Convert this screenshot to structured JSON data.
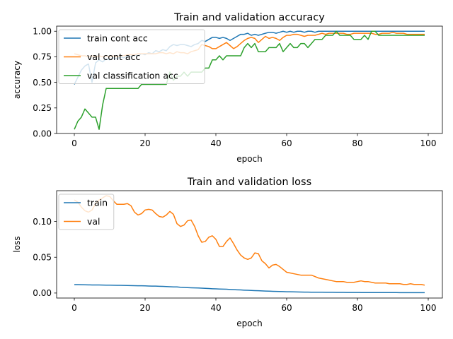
{
  "chart_data": [
    {
      "type": "line",
      "title": "Train and validation accuracy",
      "xlabel": "epoch",
      "ylabel": "accuracy",
      "xlim": [
        -5,
        104
      ],
      "ylim": [
        0.0,
        1.05
      ],
      "xticks": [
        0,
        20,
        40,
        60,
        80,
        100
      ],
      "yticks": [
        0.0,
        0.25,
        0.5,
        0.75,
        1.0
      ],
      "ytick_labels": [
        "0.00",
        "0.25",
        "0.50",
        "0.75",
        "1.00"
      ],
      "legend_position": "upper-left",
      "grid": false,
      "series": [
        {
          "name": "train cont acc",
          "color": "#1f77b4",
          "values": [
            0.48,
            0.55,
            0.62,
            0.66,
            0.68,
            0.5,
            0.69,
            0.72,
            0.7,
            0.73,
            0.72,
            0.74,
            0.73,
            0.75,
            0.74,
            0.76,
            0.75,
            0.77,
            0.76,
            0.78,
            0.77,
            0.79,
            0.78,
            0.81,
            0.8,
            0.82,
            0.81,
            0.85,
            0.87,
            0.86,
            0.87,
            0.87,
            0.86,
            0.85,
            0.87,
            0.88,
            0.91,
            0.9,
            0.92,
            0.94,
            0.94,
            0.93,
            0.94,
            0.93,
            0.91,
            0.93,
            0.95,
            0.97,
            0.97,
            0.98,
            0.96,
            0.97,
            0.96,
            0.97,
            0.98,
            0.99,
            0.99,
            0.98,
            0.99,
            1.0,
            0.99,
            1.0,
            0.99,
            1.0,
            1.0,
            0.99,
            1.0,
            1.0,
            0.99,
            1.0,
            1.0,
            1.0,
            1.0,
            1.0,
            1.0,
            1.0,
            1.0,
            1.0,
            1.0,
            1.0,
            1.0,
            1.0,
            1.0,
            1.0,
            1.0,
            1.0,
            1.0,
            1.0,
            1.0,
            1.0,
            1.0,
            1.0,
            1.0,
            1.0,
            1.0,
            1.0,
            1.0,
            1.0,
            1.0,
            1.0
          ]
        },
        {
          "name": "val cont acc",
          "color": "#ff7f0e",
          "values": [
            0.78,
            0.77,
            0.76,
            0.76,
            0.75,
            0.76,
            0.75,
            0.76,
            0.75,
            0.76,
            0.75,
            0.76,
            0.75,
            0.76,
            0.76,
            0.77,
            0.77,
            0.77,
            0.78,
            0.78,
            0.78,
            0.78,
            0.78,
            0.78,
            0.79,
            0.79,
            0.78,
            0.79,
            0.78,
            0.8,
            0.79,
            0.79,
            0.78,
            0.8,
            0.81,
            0.82,
            0.87,
            0.86,
            0.85,
            0.83,
            0.83,
            0.85,
            0.87,
            0.89,
            0.86,
            0.83,
            0.85,
            0.88,
            0.91,
            0.93,
            0.94,
            0.93,
            0.89,
            0.92,
            0.95,
            0.93,
            0.94,
            0.93,
            0.91,
            0.94,
            0.96,
            0.96,
            0.97,
            0.97,
            0.96,
            0.95,
            0.96,
            0.96,
            0.96,
            0.97,
            0.98,
            0.97,
            0.98,
            0.98,
            0.98,
            0.98,
            0.98,
            0.97,
            0.97,
            0.98,
            0.98,
            0.98,
            0.98,
            0.98,
            0.98,
            0.97,
            0.97,
            0.98,
            0.98,
            0.98,
            0.99,
            0.98,
            0.98,
            0.98,
            0.97,
            0.97,
            0.97,
            0.97,
            0.97,
            0.97
          ]
        },
        {
          "name": "val classification acc",
          "color": "#2ca02c",
          "values": [
            0.04,
            0.12,
            0.16,
            0.24,
            0.2,
            0.16,
            0.16,
            0.04,
            0.28,
            0.44,
            0.44,
            0.44,
            0.44,
            0.44,
            0.44,
            0.44,
            0.44,
            0.44,
            0.44,
            0.48,
            0.48,
            0.48,
            0.48,
            0.48,
            0.48,
            0.48,
            0.48,
            0.6,
            0.52,
            0.56,
            0.56,
            0.6,
            0.56,
            0.6,
            0.6,
            0.6,
            0.6,
            0.64,
            0.64,
            0.72,
            0.72,
            0.76,
            0.72,
            0.76,
            0.76,
            0.76,
            0.76,
            0.76,
            0.84,
            0.88,
            0.84,
            0.88,
            0.8,
            0.8,
            0.8,
            0.84,
            0.84,
            0.84,
            0.88,
            0.8,
            0.84,
            0.88,
            0.84,
            0.84,
            0.88,
            0.88,
            0.84,
            0.88,
            0.92,
            0.92,
            0.92,
            0.96,
            0.96,
            0.96,
            1.0,
            0.96,
            0.96,
            0.96,
            0.96,
            0.92,
            0.92,
            0.92,
            0.96,
            0.92,
            1.0,
            1.0,
            0.96,
            0.96,
            0.96,
            0.96,
            0.96,
            0.96,
            0.96,
            0.96,
            0.96,
            0.96,
            0.96,
            0.96,
            0.96,
            0.96
          ]
        }
      ]
    },
    {
      "type": "line",
      "title": "Train and validation loss",
      "xlabel": "epoch",
      "ylabel": "loss",
      "xlim": [
        -5,
        104
      ],
      "ylim": [
        -0.007,
        0.143
      ],
      "xticks": [
        0,
        20,
        40,
        60,
        80,
        100
      ],
      "yticks": [
        0.0,
        0.05,
        0.1
      ],
      "ytick_labels": [
        "0.00",
        "0.05",
        "0.10"
      ],
      "legend_position": "upper-left",
      "grid": false,
      "series": [
        {
          "name": "train",
          "color": "#1f77b4",
          "values": [
            0.0118,
            0.0117,
            0.0116,
            0.0115,
            0.0114,
            0.0113,
            0.0113,
            0.0112,
            0.0111,
            0.011,
            0.011,
            0.0109,
            0.0108,
            0.0107,
            0.0106,
            0.0105,
            0.0104,
            0.0103,
            0.0102,
            0.0101,
            0.01,
            0.0098,
            0.0097,
            0.0096,
            0.0094,
            0.0093,
            0.0091,
            0.0088,
            0.0086,
            0.0085,
            0.008,
            0.0078,
            0.0075,
            0.0073,
            0.0072,
            0.0071,
            0.0068,
            0.0066,
            0.0063,
            0.006,
            0.0058,
            0.0056,
            0.0055,
            0.0053,
            0.005,
            0.0047,
            0.0045,
            0.0043,
            0.004,
            0.0038,
            0.0036,
            0.0034,
            0.0032,
            0.003,
            0.0028,
            0.0026,
            0.0024,
            0.0022,
            0.0021,
            0.002,
            0.0018,
            0.0017,
            0.0016,
            0.0015,
            0.0014,
            0.0013,
            0.0013,
            0.0012,
            0.0012,
            0.0011,
            0.0011,
            0.001,
            0.001,
            0.001,
            0.0009,
            0.0009,
            0.0009,
            0.0008,
            0.0008,
            0.0008,
            0.0008,
            0.0007,
            0.0007,
            0.0007,
            0.0007,
            0.0007,
            0.0006,
            0.0006,
            0.0006,
            0.0006,
            0.0006,
            0.0006,
            0.0005,
            0.0005,
            0.0005,
            0.0005,
            0.0005,
            0.0005,
            0.0005,
            0.0005
          ]
        },
        {
          "name": "val",
          "color": "#ff7f0e",
          "values": [
            0.13,
            0.127,
            0.12,
            0.115,
            0.113,
            0.116,
            0.125,
            0.13,
            0.133,
            0.136,
            0.135,
            0.129,
            0.124,
            0.124,
            0.124,
            0.125,
            0.122,
            0.113,
            0.109,
            0.111,
            0.116,
            0.117,
            0.116,
            0.111,
            0.107,
            0.106,
            0.109,
            0.114,
            0.11,
            0.097,
            0.093,
            0.095,
            0.101,
            0.102,
            0.093,
            0.08,
            0.071,
            0.072,
            0.078,
            0.08,
            0.075,
            0.065,
            0.065,
            0.072,
            0.077,
            0.069,
            0.06,
            0.053,
            0.049,
            0.047,
            0.049,
            0.056,
            0.055,
            0.045,
            0.041,
            0.035,
            0.039,
            0.04,
            0.037,
            0.033,
            0.029,
            0.028,
            0.027,
            0.026,
            0.025,
            0.025,
            0.025,
            0.025,
            0.023,
            0.021,
            0.02,
            0.019,
            0.018,
            0.017,
            0.016,
            0.016,
            0.016,
            0.015,
            0.015,
            0.015,
            0.016,
            0.017,
            0.016,
            0.016,
            0.015,
            0.014,
            0.014,
            0.014,
            0.014,
            0.013,
            0.013,
            0.013,
            0.013,
            0.012,
            0.012,
            0.013,
            0.012,
            0.012,
            0.012,
            0.011
          ]
        }
      ]
    }
  ]
}
